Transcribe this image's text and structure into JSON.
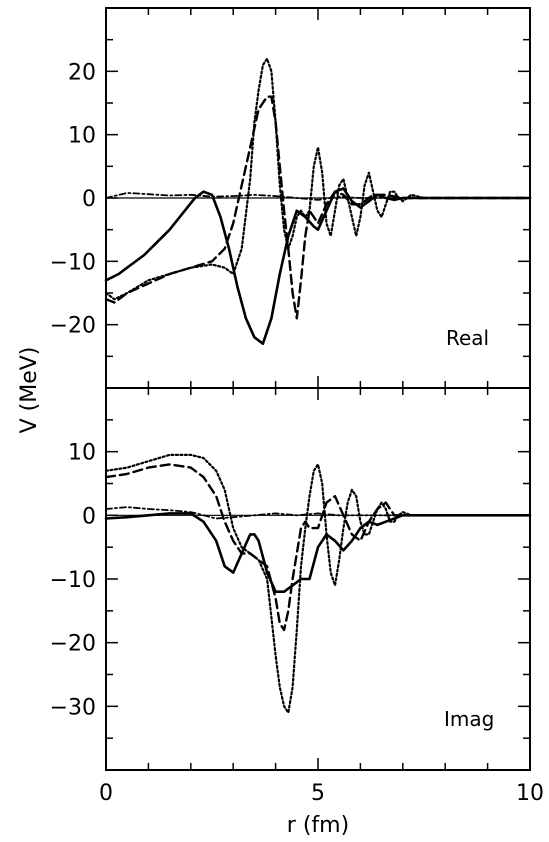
{
  "chart_data": [
    {
      "type": "line",
      "label": "Real",
      "xlabel": "r (fm)",
      "ylabel": "V (MeV)",
      "xlim": [
        0,
        10
      ],
      "ylim": [
        -30,
        30
      ],
      "xticks": [
        0,
        5,
        10
      ],
      "yticks": [
        -20,
        -10,
        0,
        10,
        20
      ],
      "ytick_labels": [
        "−20",
        "−10",
        "0",
        "10",
        "20"
      ],
      "grid": false,
      "series": [
        {
          "style": "solid",
          "x": [
            0,
            0.3,
            0.6,
            0.9,
            1.2,
            1.5,
            1.8,
            2.1,
            2.3,
            2.5,
            2.7,
            2.9,
            3.1,
            3.3,
            3.5,
            3.7,
            3.9,
            4.1,
            4.3,
            4.5,
            4.7,
            4.9,
            5.0,
            5.2,
            5.4,
            5.6,
            5.8,
            6.0,
            6.2,
            6.4,
            6.6,
            6.8,
            7.0,
            7.5,
            8,
            8.5,
            9,
            9.5,
            10
          ],
          "y": [
            -13,
            -12,
            -10.5,
            -9,
            -7,
            -5,
            -2.5,
            0,
            1,
            0.5,
            -3,
            -8,
            -14,
            -19,
            -22,
            -23,
            -19,
            -12,
            -6,
            -2,
            -3,
            -4.5,
            -5,
            -2,
            1,
            1.5,
            -0.5,
            -1.5,
            -0.5,
            0.5,
            0,
            -0.3,
            0,
            0,
            0,
            0,
            0,
            0,
            0
          ]
        },
        {
          "style": "dashed",
          "x": [
            0,
            0.2,
            0.5,
            1.0,
            1.5,
            2.0,
            2.5,
            2.8,
            3.0,
            3.2,
            3.4,
            3.6,
            3.8,
            3.9,
            4.0,
            4.1,
            4.2,
            4.3,
            4.4,
            4.5,
            4.6,
            4.7,
            4.8,
            4.9,
            5.0,
            5.2,
            5.4,
            5.6,
            5.8,
            6.0,
            6.3,
            6.6,
            7.0,
            7.5,
            8,
            9,
            10
          ],
          "y": [
            -16,
            -16.5,
            -15,
            -13.5,
            -12,
            -11,
            -10,
            -8,
            -4,
            2,
            8,
            14,
            16,
            16,
            12,
            5,
            -2,
            -8,
            -15,
            -19,
            -13,
            -6,
            -2,
            -3,
            -4,
            -1,
            1,
            0.5,
            -1,
            -1,
            0.5,
            0.5,
            0,
            0,
            0,
            0,
            0
          ]
        },
        {
          "style": "dotted",
          "x": [
            0,
            0.2,
            0.5,
            1.0,
            1.5,
            2.0,
            2.5,
            2.8,
            3.0,
            3.2,
            3.4,
            3.5,
            3.6,
            3.7,
            3.8,
            3.9,
            4.0,
            4.1,
            4.2,
            4.3,
            4.4,
            4.5,
            4.6,
            4.7,
            4.8,
            4.9,
            5.0,
            5.1,
            5.2,
            5.3,
            5.4,
            5.5,
            5.6,
            5.7,
            5.8,
            5.9,
            6.0,
            6.1,
            6.2,
            6.3,
            6.4,
            6.5,
            6.6,
            6.7,
            6.8,
            6.9,
            7.0,
            7.2,
            7.5,
            8,
            9,
            10
          ],
          "y": [
            -15,
            -16,
            -15,
            -13,
            -12,
            -11,
            -10.5,
            -11,
            -12,
            -8,
            3,
            12,
            17,
            21,
            22,
            20,
            12,
            2,
            -5,
            -8,
            -6,
            -3,
            -2,
            -3,
            -2,
            5,
            8,
            4,
            -4,
            -6,
            -2,
            2,
            3,
            0,
            -3,
            -6,
            -3,
            2,
            4,
            1,
            -2,
            -3,
            -1,
            1,
            1,
            0,
            -0.5,
            0.5,
            0,
            0,
            0,
            0
          ]
        },
        {
          "style": "dashdot",
          "x": [
            0,
            0.5,
            1.0,
            1.5,
            2.0,
            2.5,
            3.0,
            3.5,
            4.0,
            4.5,
            5.0,
            5.5,
            6,
            7,
            8,
            9,
            10
          ],
          "y": [
            0,
            0.8,
            0.6,
            0.4,
            0.5,
            0.2,
            0.3,
            0.5,
            0.3,
            0,
            -0.3,
            0.2,
            0,
            0,
            0,
            0,
            0
          ]
        }
      ]
    },
    {
      "type": "line",
      "label": "Imag",
      "xlabel": "r (fm)",
      "ylabel": "V (MeV)",
      "xlim": [
        0,
        10
      ],
      "ylim": [
        -40,
        20
      ],
      "xticks": [
        0,
        5,
        10
      ],
      "yticks": [
        -30,
        -20,
        -10,
        0,
        10
      ],
      "ytick_labels": [
        "−30",
        "−20",
        "−10",
        "0",
        "10"
      ],
      "grid": false,
      "series": [
        {
          "style": "solid",
          "x": [
            0,
            0.5,
            1.0,
            1.5,
            2.0,
            2.3,
            2.6,
            2.8,
            3.0,
            3.2,
            3.4,
            3.5,
            3.6,
            3.8,
            4.0,
            4.2,
            4.4,
            4.6,
            4.8,
            5.0,
            5.2,
            5.4,
            5.6,
            5.8,
            6.0,
            6.2,
            6.4,
            6.6,
            7.0,
            7.5,
            8,
            9,
            10
          ],
          "y": [
            -0.5,
            -0.3,
            0,
            0.3,
            0.3,
            -1,
            -4,
            -8,
            -9,
            -6,
            -3,
            -3,
            -4,
            -9,
            -12,
            -12,
            -11,
            -10,
            -10,
            -5,
            -3,
            -4,
            -5.5,
            -4,
            -2,
            -1,
            -1.5,
            -1,
            0,
            0,
            0,
            0,
            0
          ]
        },
        {
          "style": "dashed",
          "x": [
            0,
            0.5,
            1.0,
            1.5,
            2.0,
            2.3,
            2.6,
            2.8,
            3.0,
            3.2,
            3.4,
            3.6,
            3.8,
            4.0,
            4.1,
            4.2,
            4.3,
            4.4,
            4.5,
            4.6,
            4.7,
            4.8,
            4.9,
            5.0,
            5.2,
            5.4,
            5.6,
            5.8,
            6.0,
            6.2,
            6.4,
            6.6,
            6.8,
            7.0,
            7.5,
            8,
            9,
            10
          ],
          "y": [
            6,
            6.5,
            7.5,
            8,
            7.5,
            6,
            3,
            -1,
            -4,
            -6,
            -6,
            -7,
            -8,
            -13,
            -17,
            -18,
            -15,
            -10,
            -6,
            -2,
            -1,
            -2,
            -2,
            -2,
            2,
            3,
            0,
            -3,
            -4,
            -1,
            1,
            2,
            0,
            0,
            0,
            0,
            0,
            0
          ]
        },
        {
          "style": "dotted",
          "x": [
            0,
            0.5,
            1.0,
            1.5,
            2.0,
            2.3,
            2.6,
            2.8,
            3.0,
            3.2,
            3.4,
            3.6,
            3.8,
            3.9,
            4.0,
            4.1,
            4.2,
            4.3,
            4.4,
            4.5,
            4.6,
            4.7,
            4.8,
            4.9,
            5.0,
            5.1,
            5.2,
            5.3,
            5.4,
            5.5,
            5.6,
            5.7,
            5.8,
            5.9,
            6.0,
            6.1,
            6.2,
            6.3,
            6.4,
            6.5,
            6.6,
            6.7,
            6.8,
            6.9,
            7.0,
            7.2,
            7.5,
            8,
            9,
            10
          ],
          "y": [
            7,
            7.5,
            8.5,
            9.5,
            9.5,
            9,
            7,
            4,
            -2,
            -5,
            -6,
            -7,
            -10,
            -16,
            -22,
            -27,
            -30,
            -31,
            -27,
            -18,
            -8,
            -2,
            3,
            7,
            8,
            5,
            -3,
            -9,
            -11,
            -7,
            -2,
            2,
            4,
            3,
            -1,
            -3,
            -3,
            -1,
            1,
            2,
            1,
            -1,
            -1,
            0,
            0.5,
            0,
            0,
            0,
            0,
            0
          ]
        },
        {
          "style": "dashdot",
          "x": [
            0,
            0.5,
            1.0,
            1.5,
            2.0,
            2.3,
            2.6,
            3.0,
            3.5,
            4.0,
            4.5,
            5.0,
            5.5,
            6,
            7,
            8,
            9,
            10
          ],
          "y": [
            1,
            1.3,
            1,
            0.8,
            0.5,
            0,
            -0.5,
            -0.3,
            0,
            0.3,
            0,
            0.3,
            0,
            0,
            0,
            0,
            0,
            0
          ]
        }
      ]
    }
  ],
  "xlabel_text": "r (fm)",
  "ylabel_text": "V (MeV)",
  "xtick_labels": [
    "0",
    "5",
    "10"
  ],
  "panel_labels": {
    "top": "Real",
    "bottom": "Imag"
  }
}
